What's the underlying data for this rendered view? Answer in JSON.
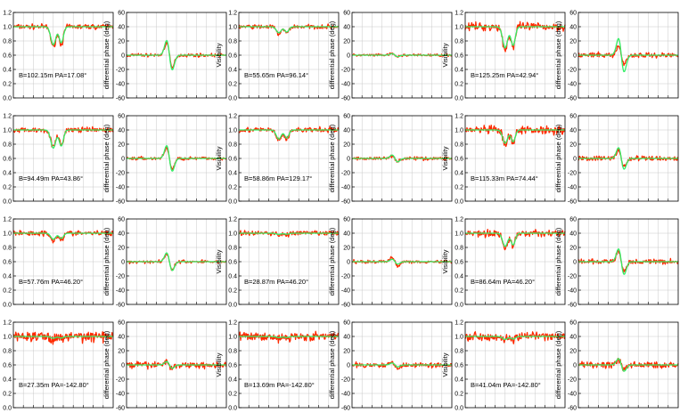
{
  "figure": {
    "visibility_ylabel": "Visibility",
    "phase_ylabel": "differential phase (deg)",
    "visibility_yticks": [
      "0.0",
      "0.2",
      "0.4",
      "0.6",
      "0.8",
      "1.0",
      "1.2"
    ],
    "phase_yticks": [
      "-60",
      "-40",
      "-20",
      "0",
      "20",
      "40",
      "60"
    ],
    "colors": {
      "observed": "#ff2a00",
      "model": "#33ee66",
      "grid": "#c8c8c8"
    }
  },
  "chart_data": [
    {
      "type": "line",
      "quantity": "visibility",
      "row": 0,
      "col": 0,
      "annotation": "B=102.15m  PA=17.08°",
      "ylim": [
        0,
        1.2
      ],
      "show_ylabel": false,
      "series": [
        {
          "values": "observed",
          "dip": 0.33,
          "noise": 0.03
        },
        {
          "values": "model",
          "dip": 0.3
        }
      ]
    },
    {
      "type": "line",
      "quantity": "differential phase",
      "row": 0,
      "col": 0,
      "ylim": [
        -60,
        60
      ],
      "series": [
        {
          "values": "observed",
          "amp": 26,
          "noise": 2
        },
        {
          "values": "model",
          "amp": 30
        }
      ]
    },
    {
      "type": "line",
      "quantity": "visibility",
      "row": 0,
      "col": 1,
      "annotation": "B=55.65m  PA=96.14°",
      "ylim": [
        0,
        1.2
      ],
      "show_ylabel": true,
      "series": [
        {
          "values": "observed",
          "dip": 0.12,
          "noise": 0.025
        },
        {
          "values": "model",
          "dip": 0.1
        }
      ]
    },
    {
      "type": "line",
      "quantity": "differential phase",
      "row": 0,
      "col": 1,
      "ylim": [
        -60,
        60
      ],
      "series": [
        {
          "values": "observed",
          "amp": 3,
          "noise": 1.5
        },
        {
          "values": "model",
          "amp": 3
        }
      ]
    },
    {
      "type": "line",
      "quantity": "visibility",
      "row": 0,
      "col": 2,
      "annotation": "B=125.25m  PA=42.94°",
      "ylim": [
        0,
        1.2
      ],
      "show_ylabel": true,
      "series": [
        {
          "values": "observed",
          "dip": 0.38,
          "noise": 0.05
        },
        {
          "values": "model",
          "dip": 0.35
        }
      ]
    },
    {
      "type": "line",
      "quantity": "differential phase",
      "row": 0,
      "col": 2,
      "ylim": [
        -60,
        60
      ],
      "series": [
        {
          "values": "observed",
          "amp": 18,
          "noise": 3
        },
        {
          "values": "model",
          "amp": 34
        }
      ]
    },
    {
      "type": "line",
      "quantity": "visibility",
      "row": 1,
      "col": 0,
      "annotation": "B=94.49m  PA=43.86°",
      "ylim": [
        0,
        1.2
      ],
      "show_ylabel": false,
      "series": [
        {
          "values": "observed",
          "dip": 0.28,
          "noise": 0.03
        },
        {
          "values": "model",
          "dip": 0.3
        }
      ]
    },
    {
      "type": "line",
      "quantity": "differential phase",
      "row": 1,
      "col": 0,
      "ylim": [
        -60,
        60
      ],
      "series": [
        {
          "values": "observed",
          "amp": 22,
          "noise": 2
        },
        {
          "values": "model",
          "amp": 26
        }
      ]
    },
    {
      "type": "line",
      "quantity": "visibility",
      "row": 1,
      "col": 1,
      "annotation": "B=58.86m  PA=129.17°",
      "ylim": [
        0,
        1.2
      ],
      "show_ylabel": true,
      "series": [
        {
          "values": "observed",
          "dip": 0.18,
          "noise": 0.03
        },
        {
          "values": "model",
          "dip": 0.15
        }
      ]
    },
    {
      "type": "line",
      "quantity": "differential phase",
      "row": 1,
      "col": 1,
      "ylim": [
        -60,
        60
      ],
      "series": [
        {
          "values": "observed",
          "amp": 6,
          "noise": 2
        },
        {
          "values": "model",
          "amp": 7
        }
      ]
    },
    {
      "type": "line",
      "quantity": "visibility",
      "row": 1,
      "col": 2,
      "annotation": "B=115.33m  PA=74.44°",
      "ylim": [
        0,
        1.2
      ],
      "show_ylabel": true,
      "series": [
        {
          "values": "observed",
          "dip": 0.25,
          "noise": 0.05
        },
        {
          "values": "model",
          "dip": 0.22
        }
      ]
    },
    {
      "type": "line",
      "quantity": "differential phase",
      "row": 1,
      "col": 2,
      "ylim": [
        -60,
        60
      ],
      "series": [
        {
          "values": "observed",
          "amp": 18,
          "noise": 3
        },
        {
          "values": "model",
          "amp": 22
        }
      ]
    },
    {
      "type": "line",
      "quantity": "visibility",
      "row": 2,
      "col": 0,
      "annotation": "B=57.76m  PA=46.20°",
      "ylim": [
        0,
        1.2
      ],
      "show_ylabel": false,
      "series": [
        {
          "values": "observed",
          "dip": 0.12,
          "noise": 0.03
        },
        {
          "values": "model",
          "dip": 0.1
        }
      ]
    },
    {
      "type": "line",
      "quantity": "differential phase",
      "row": 2,
      "col": 0,
      "ylim": [
        -60,
        60
      ],
      "series": [
        {
          "values": "observed",
          "amp": 16,
          "noise": 2
        },
        {
          "values": "model",
          "amp": 18
        }
      ]
    },
    {
      "type": "line",
      "quantity": "visibility",
      "row": 2,
      "col": 1,
      "annotation": "B=28.87m  PA=46.20°",
      "ylim": [
        0,
        1.2
      ],
      "show_ylabel": true,
      "series": [
        {
          "values": "observed",
          "dip": 0.03,
          "noise": 0.03
        },
        {
          "values": "model",
          "dip": 0.02
        }
      ]
    },
    {
      "type": "line",
      "quantity": "differential phase",
      "row": 2,
      "col": 1,
      "ylim": [
        -60,
        60
      ],
      "series": [
        {
          "values": "observed",
          "amp": 8,
          "noise": 2
        },
        {
          "values": "model",
          "amp": 5
        }
      ]
    },
    {
      "type": "line",
      "quantity": "visibility",
      "row": 2,
      "col": 2,
      "annotation": "B=86.64m  PA=46.20°",
      "ylim": [
        0,
        1.2
      ],
      "show_ylabel": true,
      "series": [
        {
          "values": "observed",
          "dip": 0.25,
          "noise": 0.04
        },
        {
          "values": "model",
          "dip": 0.22
        }
      ]
    },
    {
      "type": "line",
      "quantity": "differential phase",
      "row": 2,
      "col": 2,
      "ylim": [
        -60,
        60
      ],
      "series": [
        {
          "values": "observed",
          "amp": 20,
          "noise": 3
        },
        {
          "values": "model",
          "amp": 26
        }
      ]
    },
    {
      "type": "line",
      "quantity": "visibility",
      "row": 3,
      "col": 0,
      "annotation": "B=27.35m  PA=-142.80°",
      "ylim": [
        0,
        1.2
      ],
      "show_ylabel": false,
      "series": [
        {
          "values": "observed",
          "dip": 0.05,
          "noise": 0.06
        },
        {
          "values": "model",
          "dip": 0.03
        }
      ]
    },
    {
      "type": "line",
      "quantity": "differential phase",
      "row": 3,
      "col": 0,
      "ylim": [
        -60,
        60
      ],
      "series": [
        {
          "values": "observed",
          "amp": 8,
          "noise": 4
        },
        {
          "values": "model",
          "amp": 7
        }
      ]
    },
    {
      "type": "line",
      "quantity": "visibility",
      "row": 3,
      "col": 1,
      "annotation": "B=13.69m  PA=-142.80°",
      "ylim": [
        0,
        1.2
      ],
      "show_ylabel": true,
      "series": [
        {
          "values": "observed",
          "dip": 0.04,
          "noise": 0.05
        },
        {
          "values": "model",
          "dip": 0.02
        }
      ]
    },
    {
      "type": "line",
      "quantity": "differential phase",
      "row": 3,
      "col": 1,
      "ylim": [
        -60,
        60
      ],
      "series": [
        {
          "values": "observed",
          "amp": 5,
          "noise": 3
        },
        {
          "values": "model",
          "amp": 4
        }
      ]
    },
    {
      "type": "line",
      "quantity": "visibility",
      "row": 3,
      "col": 2,
      "annotation": "B=41.04m  PA=-142.80°",
      "ylim": [
        0,
        1.2
      ],
      "show_ylabel": true,
      "series": [
        {
          "values": "observed",
          "dip": 0.06,
          "noise": 0.05
        },
        {
          "values": "model",
          "dip": 0.05
        }
      ]
    },
    {
      "type": "line",
      "quantity": "differential phase",
      "row": 3,
      "col": 2,
      "ylim": [
        -60,
        60
      ],
      "series": [
        {
          "values": "observed",
          "amp": 10,
          "noise": 4
        },
        {
          "values": "model",
          "amp": 13
        }
      ]
    }
  ]
}
